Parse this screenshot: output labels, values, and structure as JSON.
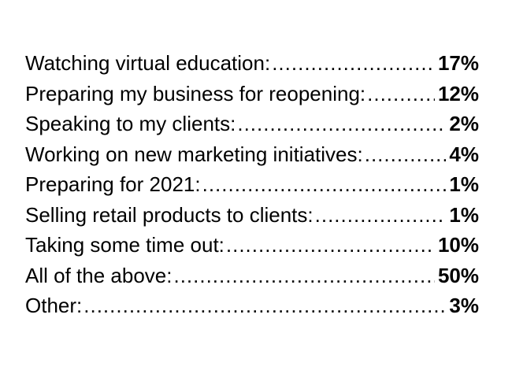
{
  "items": [
    {
      "label": "Watching virtual education:",
      "value": "17%"
    },
    {
      "label": "Preparing my business for reopening:",
      "value": "12%"
    },
    {
      "label": "Speaking to my clients:",
      "value": "2%"
    },
    {
      "label": "Working on new marketing initiatives:",
      "value": "4%"
    },
    {
      "label": "Preparing for 2021:",
      "value": "1%"
    },
    {
      "label": "Selling retail products to clients:",
      "value": "1%"
    },
    {
      "label": "Taking some time out:",
      "value": "10%"
    },
    {
      "label": "All of the above:",
      "value": "50%"
    },
    {
      "label": "Other:",
      "value": "3%"
    }
  ]
}
